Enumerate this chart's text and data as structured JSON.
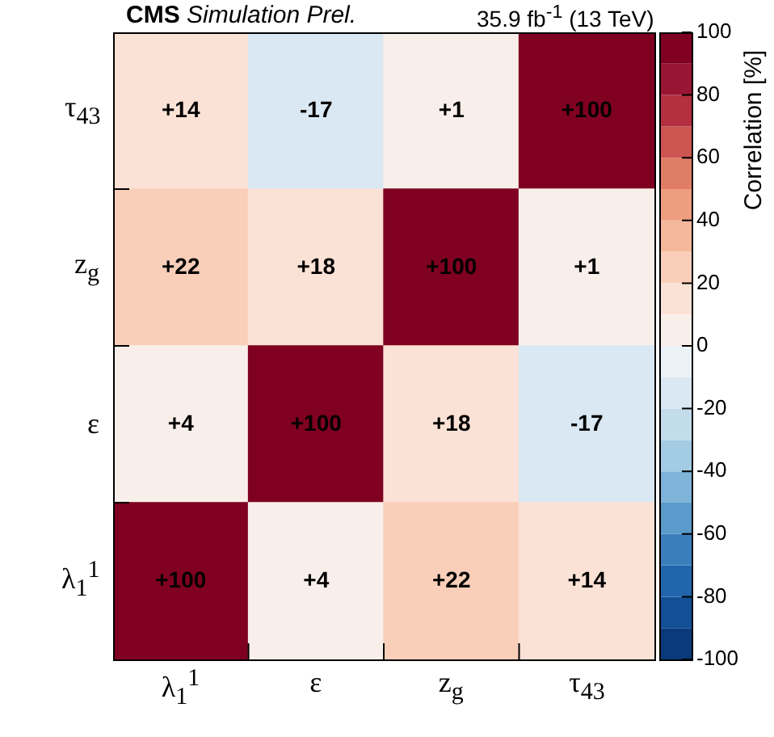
{
  "chart_data": {
    "type": "heatmap",
    "title": "CMS Simulation Prel.",
    "annotations": [
      "35.9 fb$^{-1}$ (13 TeV)"
    ],
    "clabel": "Correlation [%]",
    "categories": [
      "λ$_{1}$$^{1}$",
      "ε",
      "z$_{g}$",
      "τ$_{43}$"
    ],
    "y_categories": [
      "τ$_{43}$",
      "z$_{g}$",
      "ε",
      "λ$_{1}$$^{1}$"
    ],
    "cells": [
      [
        14,
        -17,
        1,
        100
      ],
      [
        22,
        18,
        100,
        1
      ],
      [
        4,
        100,
        18,
        -17
      ],
      [
        100,
        4,
        22,
        14
      ]
    ],
    "cell_labels": [
      [
        "+14",
        "-17",
        "+1",
        "+100"
      ],
      [
        "+22",
        "+18",
        "+100",
        "+1"
      ],
      [
        "+4",
        "+100",
        "+18",
        "-17"
      ],
      [
        "+100",
        "+4",
        "+22",
        "+14"
      ]
    ],
    "clim": [
      -100,
      100
    ],
    "cticks": [
      -100,
      -80,
      -60,
      -40,
      -20,
      0,
      20,
      40,
      60,
      80,
      100
    ]
  }
}
